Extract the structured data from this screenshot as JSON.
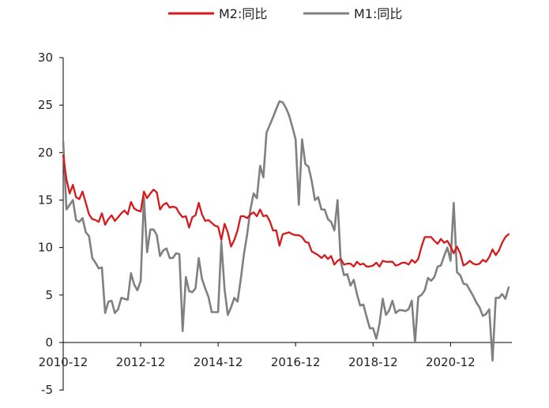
{
  "chart_data": {
    "type": "line",
    "title": "",
    "xlabel": "",
    "ylabel": "",
    "ylim": [
      -5,
      30
    ],
    "yticks": [
      -5,
      0,
      5,
      10,
      15,
      20,
      25,
      30
    ],
    "xlim": [
      "2010-12",
      "2022-07"
    ],
    "xtick_labels": [
      "2010-12",
      "2012-12",
      "2014-12",
      "2016-12",
      "2018-12",
      "2020-12"
    ],
    "grid": false,
    "legend_position": "top-center",
    "series": [
      {
        "name": "M2:同比",
        "color": "#d7191c",
        "points": [
          [
            "2010-12",
            19.7
          ],
          [
            "2011-01",
            17.2
          ],
          [
            "2011-02",
            15.7
          ],
          [
            "2011-03",
            16.6
          ],
          [
            "2011-04",
            15.3
          ],
          [
            "2011-05",
            15.1
          ],
          [
            "2011-06",
            15.9
          ],
          [
            "2011-07",
            14.7
          ],
          [
            "2011-08",
            13.5
          ],
          [
            "2011-09",
            13.0
          ],
          [
            "2011-10",
            12.9
          ],
          [
            "2011-11",
            12.7
          ],
          [
            "2011-12",
            13.6
          ],
          [
            "2012-01",
            12.4
          ],
          [
            "2012-02",
            13.0
          ],
          [
            "2012-03",
            13.4
          ],
          [
            "2012-04",
            12.8
          ],
          [
            "2012-05",
            13.2
          ],
          [
            "2012-06",
            13.6
          ],
          [
            "2012-07",
            13.9
          ],
          [
            "2012-08",
            13.5
          ],
          [
            "2012-09",
            14.8
          ],
          [
            "2012-10",
            14.1
          ],
          [
            "2012-11",
            13.9
          ],
          [
            "2012-12",
            13.8
          ],
          [
            "2013-01",
            15.9
          ],
          [
            "2013-02",
            15.2
          ],
          [
            "2013-03",
            15.7
          ],
          [
            "2013-04",
            16.1
          ],
          [
            "2013-05",
            15.8
          ],
          [
            "2013-06",
            14.0
          ],
          [
            "2013-07",
            14.5
          ],
          [
            "2013-08",
            14.7
          ],
          [
            "2013-09",
            14.2
          ],
          [
            "2013-10",
            14.3
          ],
          [
            "2013-11",
            14.2
          ],
          [
            "2013-12",
            13.6
          ],
          [
            "2014-01",
            13.2
          ],
          [
            "2014-02",
            13.3
          ],
          [
            "2014-03",
            12.1
          ],
          [
            "2014-04",
            13.2
          ],
          [
            "2014-05",
            13.4
          ],
          [
            "2014-06",
            14.7
          ],
          [
            "2014-07",
            13.5
          ],
          [
            "2014-08",
            12.8
          ],
          [
            "2014-09",
            12.9
          ],
          [
            "2014-10",
            12.6
          ],
          [
            "2014-11",
            12.3
          ],
          [
            "2014-12",
            12.2
          ],
          [
            "2015-01",
            10.8
          ],
          [
            "2015-02",
            12.5
          ],
          [
            "2015-03",
            11.6
          ],
          [
            "2015-04",
            10.1
          ],
          [
            "2015-05",
            10.8
          ],
          [
            "2015-06",
            11.8
          ],
          [
            "2015-07",
            13.3
          ],
          [
            "2015-08",
            13.3
          ],
          [
            "2015-09",
            13.1
          ],
          [
            "2015-10",
            13.5
          ],
          [
            "2015-11",
            13.7
          ],
          [
            "2015-12",
            13.3
          ],
          [
            "2016-01",
            14.0
          ],
          [
            "2016-02",
            13.3
          ],
          [
            "2016-03",
            13.4
          ],
          [
            "2016-04",
            12.8
          ],
          [
            "2016-05",
            11.8
          ],
          [
            "2016-06",
            11.8
          ],
          [
            "2016-07",
            10.2
          ],
          [
            "2016-08",
            11.4
          ],
          [
            "2016-09",
            11.5
          ],
          [
            "2016-10",
            11.6
          ],
          [
            "2016-11",
            11.4
          ],
          [
            "2016-12",
            11.3
          ],
          [
            "2017-01",
            11.3
          ],
          [
            "2017-02",
            11.1
          ],
          [
            "2017-03",
            10.6
          ],
          [
            "2017-04",
            10.5
          ],
          [
            "2017-05",
            9.6
          ],
          [
            "2017-06",
            9.4
          ],
          [
            "2017-07",
            9.2
          ],
          [
            "2017-08",
            8.9
          ],
          [
            "2017-09",
            9.2
          ],
          [
            "2017-10",
            8.8
          ],
          [
            "2017-11",
            9.1
          ],
          [
            "2017-12",
            8.2
          ],
          [
            "2018-01",
            8.6
          ],
          [
            "2018-02",
            8.8
          ],
          [
            "2018-03",
            8.2
          ],
          [
            "2018-04",
            8.3
          ],
          [
            "2018-05",
            8.3
          ],
          [
            "2018-06",
            8.0
          ],
          [
            "2018-07",
            8.5
          ],
          [
            "2018-08",
            8.2
          ],
          [
            "2018-09",
            8.3
          ],
          [
            "2018-10",
            8.0
          ],
          [
            "2018-11",
            8.0
          ],
          [
            "2018-12",
            8.1
          ],
          [
            "2019-01",
            8.4
          ],
          [
            "2019-02",
            8.0
          ],
          [
            "2019-03",
            8.6
          ],
          [
            "2019-04",
            8.5
          ],
          [
            "2019-05",
            8.5
          ],
          [
            "2019-06",
            8.5
          ],
          [
            "2019-07",
            8.1
          ],
          [
            "2019-08",
            8.2
          ],
          [
            "2019-09",
            8.4
          ],
          [
            "2019-10",
            8.4
          ],
          [
            "2019-11",
            8.2
          ],
          [
            "2019-12",
            8.7
          ],
          [
            "2020-01",
            8.4
          ],
          [
            "2020-02",
            8.8
          ],
          [
            "2020-03",
            10.1
          ],
          [
            "2020-04",
            11.1
          ],
          [
            "2020-05",
            11.1
          ],
          [
            "2020-06",
            11.1
          ],
          [
            "2020-07",
            10.7
          ],
          [
            "2020-08",
            10.4
          ],
          [
            "2020-09",
            10.9
          ],
          [
            "2020-10",
            10.5
          ],
          [
            "2020-11",
            10.7
          ],
          [
            "2020-12",
            10.1
          ],
          [
            "2021-01",
            9.4
          ],
          [
            "2021-02",
            10.1
          ],
          [
            "2021-03",
            9.4
          ],
          [
            "2021-04",
            8.1
          ],
          [
            "2021-05",
            8.3
          ],
          [
            "2021-06",
            8.6
          ],
          [
            "2021-07",
            8.3
          ],
          [
            "2021-08",
            8.2
          ],
          [
            "2021-09",
            8.3
          ],
          [
            "2021-10",
            8.7
          ],
          [
            "2021-11",
            8.5
          ],
          [
            "2021-12",
            9.0
          ],
          [
            "2022-01",
            9.8
          ],
          [
            "2022-02",
            9.2
          ],
          [
            "2022-03",
            9.7
          ],
          [
            "2022-04",
            10.5
          ],
          [
            "2022-05",
            11.1
          ],
          [
            "2022-06",
            11.4
          ]
        ]
      },
      {
        "name": "M1:同比",
        "color": "#808080",
        "points": [
          [
            "2010-12",
            21.2
          ],
          [
            "2011-01",
            14.0
          ],
          [
            "2011-02",
            14.5
          ],
          [
            "2011-03",
            15.0
          ],
          [
            "2011-04",
            12.9
          ],
          [
            "2011-05",
            12.7
          ],
          [
            "2011-06",
            13.1
          ],
          [
            "2011-07",
            11.6
          ],
          [
            "2011-08",
            11.2
          ],
          [
            "2011-09",
            8.9
          ],
          [
            "2011-10",
            8.4
          ],
          [
            "2011-11",
            7.8
          ],
          [
            "2011-12",
            7.9
          ],
          [
            "2012-01",
            3.1
          ],
          [
            "2012-02",
            4.3
          ],
          [
            "2012-03",
            4.4
          ],
          [
            "2012-04",
            3.1
          ],
          [
            "2012-05",
            3.5
          ],
          [
            "2012-06",
            4.7
          ],
          [
            "2012-07",
            4.6
          ],
          [
            "2012-08",
            4.5
          ],
          [
            "2012-09",
            7.3
          ],
          [
            "2012-10",
            6.1
          ],
          [
            "2012-11",
            5.5
          ],
          [
            "2012-12",
            6.5
          ],
          [
            "2013-01",
            15.3
          ],
          [
            "2013-02",
            9.5
          ],
          [
            "2013-03",
            11.9
          ],
          [
            "2013-04",
            11.9
          ],
          [
            "2013-05",
            11.3
          ],
          [
            "2013-06",
            9.1
          ],
          [
            "2013-07",
            9.7
          ],
          [
            "2013-08",
            9.9
          ],
          [
            "2013-09",
            8.9
          ],
          [
            "2013-10",
            8.9
          ],
          [
            "2013-11",
            9.4
          ],
          [
            "2013-12",
            9.3
          ],
          [
            "2014-01",
            1.2
          ],
          [
            "2014-02",
            6.9
          ],
          [
            "2014-03",
            5.4
          ],
          [
            "2014-04",
            5.3
          ],
          [
            "2014-05",
            5.7
          ],
          [
            "2014-06",
            8.9
          ],
          [
            "2014-07",
            6.7
          ],
          [
            "2014-08",
            5.7
          ],
          [
            "2014-09",
            4.8
          ],
          [
            "2014-10",
            3.2
          ],
          [
            "2014-11",
            3.2
          ],
          [
            "2014-12",
            3.2
          ],
          [
            "2015-01",
            10.6
          ],
          [
            "2015-02",
            5.6
          ],
          [
            "2015-03",
            2.9
          ],
          [
            "2015-04",
            3.7
          ],
          [
            "2015-05",
            4.7
          ],
          [
            "2015-06",
            4.3
          ],
          [
            "2015-07",
            6.6
          ],
          [
            "2015-08",
            9.3
          ],
          [
            "2015-09",
            11.4
          ],
          [
            "2015-10",
            14.0
          ],
          [
            "2015-11",
            15.7
          ],
          [
            "2015-12",
            15.2
          ],
          [
            "2016-01",
            18.6
          ],
          [
            "2016-02",
            17.4
          ],
          [
            "2016-03",
            22.1
          ],
          [
            "2016-04",
            22.9
          ],
          [
            "2016-05",
            23.7
          ],
          [
            "2016-06",
            24.6
          ],
          [
            "2016-07",
            25.4
          ],
          [
            "2016-08",
            25.3
          ],
          [
            "2016-09",
            24.7
          ],
          [
            "2016-10",
            23.9
          ],
          [
            "2016-11",
            22.7
          ],
          [
            "2016-12",
            21.4
          ],
          [
            "2017-01",
            14.5
          ],
          [
            "2017-02",
            21.4
          ],
          [
            "2017-03",
            18.8
          ],
          [
            "2017-04",
            18.5
          ],
          [
            "2017-05",
            17.0
          ],
          [
            "2017-06",
            15.0
          ],
          [
            "2017-07",
            15.3
          ],
          [
            "2017-08",
            14.0
          ],
          [
            "2017-09",
            14.0
          ],
          [
            "2017-10",
            13.0
          ],
          [
            "2017-11",
            12.7
          ],
          [
            "2017-12",
            11.8
          ],
          [
            "2018-01",
            15.0
          ],
          [
            "2018-02",
            8.5
          ],
          [
            "2018-03",
            7.1
          ],
          [
            "2018-04",
            7.2
          ],
          [
            "2018-05",
            6.0
          ],
          [
            "2018-06",
            6.6
          ],
          [
            "2018-07",
            5.1
          ],
          [
            "2018-08",
            3.9
          ],
          [
            "2018-09",
            4.0
          ],
          [
            "2018-10",
            2.7
          ],
          [
            "2018-11",
            1.5
          ],
          [
            "2018-12",
            1.5
          ],
          [
            "2019-01",
            0.4
          ],
          [
            "2019-02",
            2.0
          ],
          [
            "2019-03",
            4.6
          ],
          [
            "2019-04",
            2.9
          ],
          [
            "2019-05",
            3.4
          ],
          [
            "2019-06",
            4.4
          ],
          [
            "2019-07",
            3.1
          ],
          [
            "2019-08",
            3.4
          ],
          [
            "2019-09",
            3.4
          ],
          [
            "2019-10",
            3.3
          ],
          [
            "2019-11",
            3.5
          ],
          [
            "2019-12",
            4.4
          ],
          [
            "2020-01",
            0.0
          ],
          [
            "2020-02",
            4.8
          ],
          [
            "2020-03",
            5.0
          ],
          [
            "2020-04",
            5.5
          ],
          [
            "2020-05",
            6.8
          ],
          [
            "2020-06",
            6.5
          ],
          [
            "2020-07",
            6.9
          ],
          [
            "2020-08",
            8.0
          ],
          [
            "2020-09",
            8.1
          ],
          [
            "2020-10",
            9.1
          ],
          [
            "2020-11",
            10.0
          ],
          [
            "2020-12",
            8.6
          ],
          [
            "2021-01",
            14.7
          ],
          [
            "2021-02",
            7.4
          ],
          [
            "2021-03",
            7.1
          ],
          [
            "2021-04",
            6.2
          ],
          [
            "2021-05",
            6.1
          ],
          [
            "2021-06",
            5.5
          ],
          [
            "2021-07",
            4.9
          ],
          [
            "2021-08",
            4.2
          ],
          [
            "2021-09",
            3.7
          ],
          [
            "2021-10",
            2.8
          ],
          [
            "2021-11",
            3.0
          ],
          [
            "2021-12",
            3.5
          ],
          [
            "2022-01",
            -1.9
          ],
          [
            "2022-02",
            4.7
          ],
          [
            "2022-03",
            4.7
          ],
          [
            "2022-04",
            5.1
          ],
          [
            "2022-05",
            4.6
          ],
          [
            "2022-06",
            5.8
          ]
        ]
      }
    ]
  }
}
